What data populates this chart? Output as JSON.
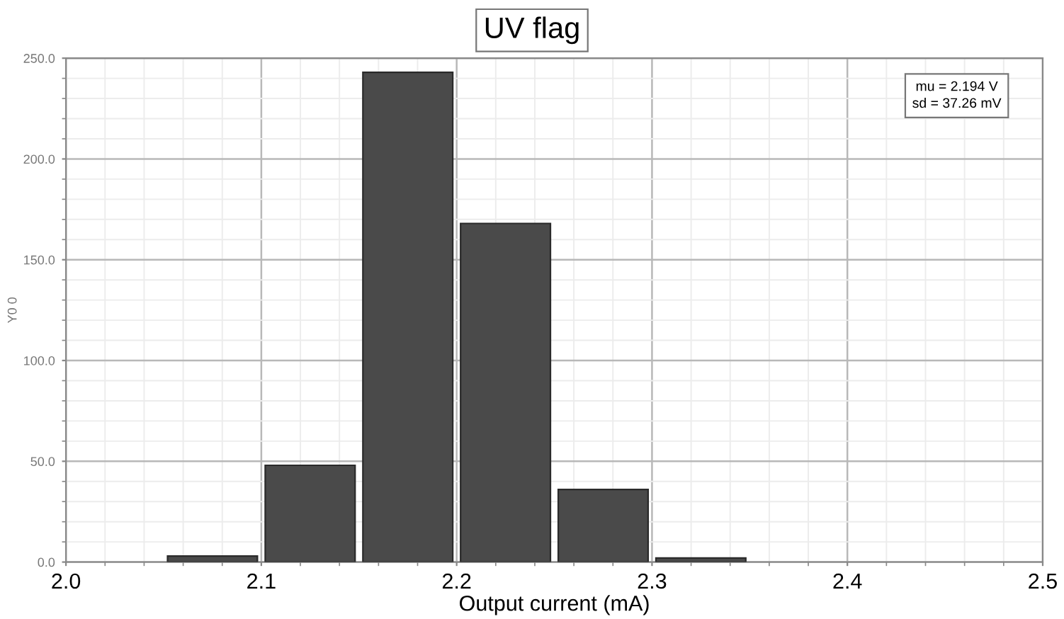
{
  "chart_data": {
    "type": "histogram",
    "title": "UV flag",
    "xlabel": "Output current (mA)",
    "ylabel": "Y0 0",
    "bins": [
      2.05,
      2.1,
      2.15,
      2.2,
      2.25,
      2.3,
      2.35
    ],
    "values": [
      3,
      48,
      243,
      168,
      36,
      2
    ],
    "color": "#4a4a4a",
    "xlim": [
      2.0,
      2.5
    ],
    "xticks": [
      {
        "value": 2.0,
        "label": "2.0"
      },
      2.1,
      2.2,
      2.3,
      2.4,
      {
        "value": 2.5,
        "label": "2.5"
      }
    ],
    "ylim": [
      0,
      250
    ],
    "yticks": [
      {
        "value": 0,
        "label": "0.0"
      },
      {
        "value": 50,
        "label": "50.0"
      },
      {
        "value": 100,
        "label": "100.0"
      },
      {
        "value": 150,
        "label": "150.0"
      },
      {
        "value": 200,
        "label": "200.0"
      },
      {
        "value": 250,
        "label": "250.0"
      }
    ],
    "grid": true,
    "annotations": [
      "mu = 2.194 V",
      "sd = 37.26 mV"
    ]
  }
}
